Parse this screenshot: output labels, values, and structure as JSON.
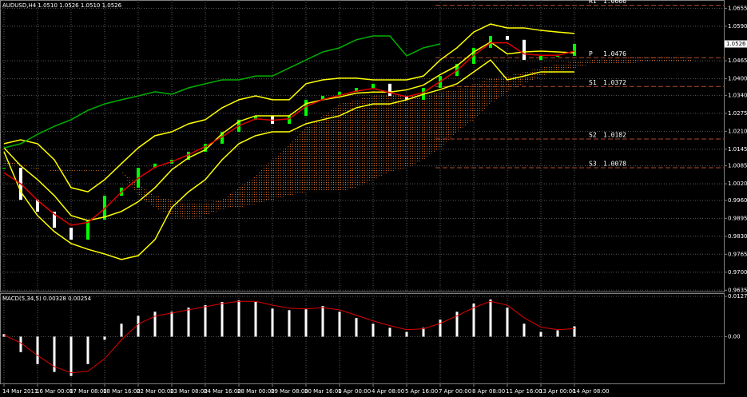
{
  "chart_data": [
    {
      "type": "line",
      "title": "AUDUSD,H4  1.0510 1.0526 1.0510 1.0526",
      "ylim": [
        0.963,
        1.0685
      ],
      "yticks": [
        1.0655,
        {
          "value": 1.059,
          "label": "1.0590"
        },
        1.0465,
        {
          "value": 1.04,
          "label": "1.0400"
        },
        {
          "value": 1.034,
          "label": "1.0340"
        },
        1.0275,
        {
          "value": 1.021,
          "label": "1.0210"
        },
        1.0145,
        1.0085,
        {
          "value": 1.002,
          "label": "1.0020"
        },
        {
          "value": 0.996,
          "label": "0.9960"
        },
        0.9895,
        {
          "value": 0.983,
          "label": "0.9830"
        },
        0.9765,
        {
          "value": 0.97,
          "label": "0.9700"
        },
        0.9635
      ],
      "grid": true,
      "current_price": 1.0526,
      "cloud": {
        "color": "#d2691e",
        "span_a": [
          1.0093,
          1.0084,
          1.0072,
          1.0072,
          1.0069,
          1.0069,
          1.0069,
          1.0064,
          1.002,
          0.9977,
          0.9962,
          0.9948,
          0.9948,
          0.9962,
          1.0006,
          1.0049,
          1.0107,
          1.0165,
          1.0223,
          1.0266,
          1.0309,
          1.0324,
          1.0338,
          1.0344,
          1.0344,
          1.0338,
          1.0353,
          1.0361,
          1.0382,
          1.0402,
          1.041,
          1.0425,
          1.0439,
          1.0454,
          1.046,
          1.0468,
          1.0474,
          1.0477,
          1.0477,
          1.0477,
          1.0483,
          1.0483
        ],
        "span_b": [
          1.0107,
          1.0093,
          1.0078,
          1.0064,
          1.0064,
          1.0064,
          1.0064,
          1.0064,
          0.9977,
          0.9934,
          0.9905,
          0.989,
          0.9905,
          0.9928,
          0.9934,
          0.9948,
          0.9962,
          0.9977,
          0.9991,
          0.9991,
          0.9991,
          1.0006,
          1.0035,
          1.0064,
          1.0078,
          1.0107,
          1.015,
          1.0208,
          1.0252,
          1.0309,
          1.0353,
          1.0382,
          1.041,
          1.0425,
          1.0439,
          1.0454,
          1.0454,
          1.0454,
          1.046,
          1.046,
          1.046,
          1.046
        ]
      },
      "series": [
        {
          "type": "candle",
          "color": "#00ff00",
          "down_color": "#ffffff",
          "values": [
            1.0078,
            0.9962,
            0.9919,
            0.9861,
            0.9818,
            0.989,
            0.9977,
            1.0006,
            1.0078,
            1.0093,
            1.0107,
            1.0136,
            1.0165,
            1.0208,
            1.0252,
            1.0266,
            1.0237,
            1.0266,
            1.0324,
            1.0338,
            1.0353,
            1.0367,
            1.0382,
            1.0338,
            1.0324,
            1.0367,
            1.041,
            1.0454,
            1.0512,
            1.0555,
            1.0541,
            1.0468,
            1.0483,
            1.0483,
            1.0526,
            null,
            null,
            null,
            null,
            null,
            null,
            null
          ]
        },
        {
          "type": "line",
          "color": "#ffff00",
          "values": [
            1.0165,
            1.0179,
            1.0165,
            1.0107,
            1.0006,
            0.9991,
            1.0035,
            1.0093,
            1.015,
            1.0194,
            1.0208,
            1.0237,
            1.0252,
            1.0295,
            1.0324,
            1.0338,
            1.0324,
            1.0324,
            1.0382,
            1.0396,
            1.0402,
            1.0402,
            1.0396,
            1.0396,
            1.0396,
            1.041,
            1.0468,
            1.0512,
            1.0569,
            1.0598,
            1.0584,
            1.0584,
            1.0575,
            1.0569,
            1.0564,
            null,
            null,
            null,
            null,
            null,
            null,
            null
          ]
        },
        {
          "type": "line",
          "color": "#ffff00",
          "values": [
            1.015,
            1.0085,
            1.0035,
            0.9977,
            0.9905,
            0.9887,
            0.99,
            0.992,
            0.9955,
            1.0006,
            1.0071,
            1.0114,
            1.0143,
            1.0201,
            1.0245,
            1.0266,
            1.0266,
            1.0266,
            1.031,
            1.0324,
            1.0334,
            1.0348,
            1.0352,
            1.0352,
            1.036,
            1.0377,
            1.0415,
            1.0447,
            1.0497,
            1.0533,
            1.049,
            1.0497,
            1.05,
            1.0497,
            1.0494,
            null,
            null,
            null,
            null,
            null,
            null,
            null
          ]
        },
        {
          "type": "line",
          "color": "#ffff00",
          "values": [
            1.0136,
            0.9991,
            0.9905,
            0.9847,
            0.9804,
            0.9783,
            0.9766,
            0.9746,
            0.976,
            0.9818,
            0.9934,
            0.9991,
            1.0035,
            1.0107,
            1.0165,
            1.0194,
            1.0208,
            1.0208,
            1.0237,
            1.0252,
            1.0266,
            1.0295,
            1.0309,
            1.0309,
            1.0324,
            1.0344,
            1.0361,
            1.0382,
            1.0425,
            1.0468,
            1.0396,
            1.041,
            1.0425,
            1.0425,
            1.0425,
            null,
            null,
            null,
            null,
            null,
            null,
            null
          ]
        },
        {
          "type": "line",
          "color": "#e00000",
          "values": [
            1.006,
            1.002,
            0.996,
            0.991,
            0.987,
            0.988,
            0.993,
            0.999,
            1.004,
            1.008,
            1.01,
            1.0125,
            1.0155,
            1.019,
            1.023,
            1.0255,
            1.025,
            1.0255,
            1.03,
            1.0325,
            1.034,
            1.0355,
            1.0365,
            1.035,
            1.0335,
            1.035,
            1.039,
            1.043,
            1.0485,
            1.053,
            1.053,
            1.049,
            1.0485,
            1.0485,
            1.05,
            null,
            null,
            null,
            null,
            null,
            null,
            null
          ]
        },
        {
          "type": "line",
          "color": "#00b000",
          "values": [
            1.015,
            1.0165,
            1.0199,
            1.0228,
            1.0252,
            1.0286,
            1.0309,
            1.0324,
            1.0338,
            1.0353,
            1.0344,
            1.0367,
            1.0382,
            1.0396,
            1.0396,
            1.041,
            1.041,
            1.0439,
            1.0468,
            1.0497,
            1.0512,
            1.0541,
            1.0555,
            1.0555,
            1.0483,
            1.0512,
            1.0526,
            null,
            null,
            null,
            null,
            null,
            null,
            null,
            null,
            null,
            null,
            null,
            null,
            null,
            null,
            null
          ]
        }
      ],
      "levels": [
        {
          "label": "R1",
          "value": 1.0666
        },
        {
          "label": "P",
          "value": 1.0476
        },
        {
          "label": "S1",
          "value": 1.0372
        },
        {
          "label": "S2",
          "value": 1.0182
        },
        {
          "label": "S3",
          "value": 1.0078
        }
      ],
      "level_color": "#b04a2a"
    },
    {
      "type": "bar",
      "title": "MACD(5,34,5) 0.00328 0.00254",
      "ylim": [
        -0.0151,
        0.0138
      ],
      "yticks": [
        0.01278,
        {
          "value": 0,
          "label": "0.00"
        }
      ],
      "grid": true,
      "categories": [
        "14 Mar 2011",
        null,
        "16 Mar 00:00",
        null,
        "17 Mar 08:00",
        null,
        "18 Mar 16:00",
        null,
        "22 Mar 00:00",
        null,
        "23 Mar 08:00",
        null,
        "24 Mar 16:00",
        null,
        "28 Mar 00:00",
        null,
        "29 Mar 08:00",
        null,
        "30 Mar 16:00",
        null,
        "1 Apr 00:00",
        null,
        "4 Apr 08:00",
        null,
        "5 Apr 16:00",
        null,
        "7 Apr 00:00",
        null,
        "8 Apr 08:00",
        null,
        "11 Apr 16:00",
        null,
        "13 Apr 00:00",
        null,
        "14 Apr 08:00",
        null,
        null,
        null,
        null,
        null,
        null,
        null
      ],
      "series": [
        {
          "type": "bar",
          "color": "#ffffff",
          "values": [
            0.0008,
            -0.0049,
            -0.0087,
            -0.0112,
            -0.0125,
            -0.0087,
            -0.001,
            0.0041,
            0.0066,
            0.0079,
            0.0079,
            0.0092,
            0.01,
            0.011,
            0.0115,
            0.011,
            0.0089,
            0.0084,
            0.0087,
            0.0097,
            0.0079,
            0.0059,
            0.0041,
            0.0028,
            0.0015,
            0.0028,
            0.0054,
            0.0079,
            0.0105,
            0.0118,
            0.0092,
            0.0041,
            0.0015,
            0.002,
            0.00328,
            null,
            null,
            null,
            null,
            null,
            null,
            null
          ]
        },
        {
          "type": "line",
          "color": "#e00000",
          "values": [
            0.0005,
            -0.002,
            -0.006,
            -0.0095,
            -0.0115,
            -0.011,
            -0.007,
            -0.001,
            0.004,
            0.0065,
            0.0075,
            0.0085,
            0.0095,
            0.0105,
            0.0112,
            0.0112,
            0.01,
            0.009,
            0.0088,
            0.0092,
            0.0085,
            0.0068,
            0.005,
            0.0035,
            0.0022,
            0.0025,
            0.0042,
            0.0066,
            0.0092,
            0.0112,
            0.01,
            0.006,
            0.003,
            0.0022,
            0.00254,
            null,
            null,
            null,
            null,
            null,
            null,
            null
          ]
        }
      ]
    }
  ]
}
